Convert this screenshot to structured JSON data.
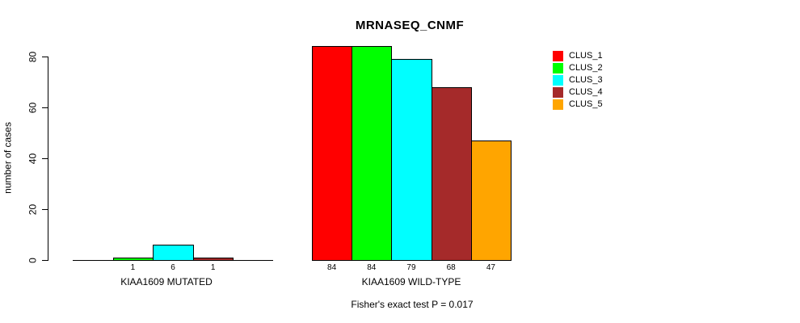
{
  "chart_data": {
    "type": "bar",
    "title": "MRNASEQ_CNMF",
    "ylabel": "number of cases",
    "ylim": [
      0,
      80
    ],
    "yticks": [
      0,
      20,
      40,
      60,
      80
    ],
    "grid": false,
    "legend_position": "top-right",
    "clusters": [
      {
        "name": "CLUS_1",
        "color": "#FF0000"
      },
      {
        "name": "CLUS_2",
        "color": "#00FF00"
      },
      {
        "name": "CLUS_3",
        "color": "#00FFFF"
      },
      {
        "name": "CLUS_4",
        "color": "#A52A2A"
      },
      {
        "name": "CLUS_5",
        "color": "#FFA500"
      }
    ],
    "groups": [
      {
        "label": "KIAA1609 MUTATED",
        "values": [
          0,
          1,
          6,
          1,
          0
        ],
        "bar_labels": [
          "",
          "1",
          "6",
          "1",
          ""
        ]
      },
      {
        "label": "KIAA1609 WILD-TYPE",
        "values": [
          84,
          84,
          79,
          68,
          47
        ],
        "bar_labels": [
          "84",
          "84",
          "79",
          "68",
          "47"
        ]
      }
    ],
    "annotation": "Fisher's exact test P = 0.017"
  }
}
